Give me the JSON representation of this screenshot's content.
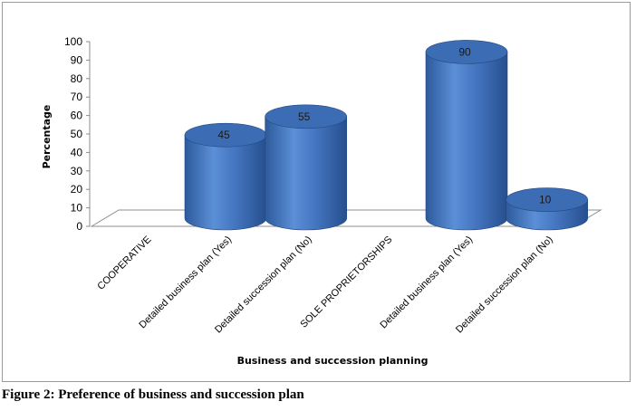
{
  "figure_caption": "Figure 2: Preference of business and succession plan",
  "chart_data": {
    "type": "bar",
    "style": "3d-cylinder",
    "categories": [
      "COOPERATIVE",
      "Detailed business plan (Yes)",
      "Detailed succession plan (No)",
      "SOLE PROPRIETORSHIPS",
      "Detailed business plan (Yes)",
      "Detailed succession plan (No)"
    ],
    "values": [
      null,
      45,
      55,
      null,
      90,
      10
    ],
    "data_labels": [
      "",
      "45",
      "55",
      "",
      "90",
      "10"
    ],
    "xlabel": "Business and succession planning",
    "ylabel": "Percentage",
    "ylim": [
      0,
      100
    ],
    "yticks": [
      "0",
      "10",
      "20",
      "30",
      "40",
      "50",
      "60",
      "70",
      "80",
      "90",
      "100"
    ],
    "grid": false,
    "legend": "none",
    "colors": {
      "bar": "#4a7fc8",
      "bar_dark": "#2a5596",
      "bar_light": "#7fa8e0",
      "top": "#3c6cb4"
    }
  }
}
